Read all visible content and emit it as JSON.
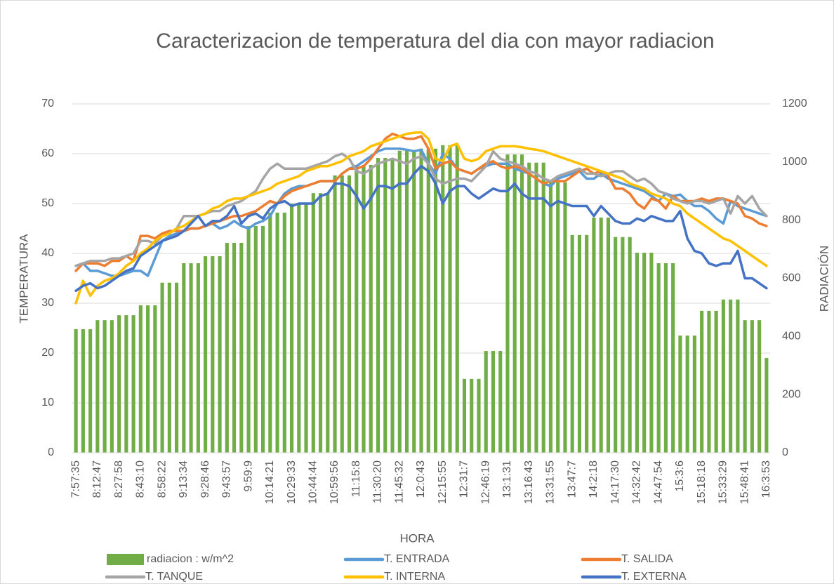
{
  "chart_data": {
    "type": "combo",
    "title": "Caracterizacion de temperatura del dia con mayor radiacion",
    "x_label": "HORA",
    "y_label": "TEMPERATURA",
    "y2_label": "RADIACIÓN",
    "categories": [
      "7:57:35",
      null,
      null,
      "8:12:47",
      null,
      null,
      "8:27:58",
      null,
      null,
      "8:43:10",
      null,
      null,
      "8:58:22",
      null,
      null,
      "9:13:34",
      null,
      null,
      "9:28:46",
      null,
      null,
      "9:43:57",
      null,
      null,
      "9:59:9",
      null,
      null,
      "10:14:21",
      null,
      null,
      "10:29:33",
      null,
      null,
      "10:44:44",
      null,
      null,
      "10:59:56",
      null,
      null,
      "11:15:8",
      null,
      null,
      "11:30:20",
      null,
      null,
      "11:45:32",
      null,
      null,
      "12:0:43",
      null,
      null,
      "12:15:55",
      null,
      null,
      "12:31:7",
      null,
      null,
      "12:46:19",
      null,
      null,
      "13:1:31",
      null,
      null,
      "13:16:43",
      null,
      null,
      "13:31:55",
      null,
      null,
      "13:47:7",
      null,
      null,
      "14:2:18",
      null,
      null,
      "14:17:30",
      null,
      null,
      "14:32:42",
      null,
      null,
      "14:47:54",
      null,
      null,
      "15:3:6",
      null,
      null,
      "15:18:18",
      null,
      null,
      "15:33:29",
      null,
      null,
      "15:48:41",
      null,
      null,
      "16:3:53"
    ],
    "ylim": [
      0,
      70
    ],
    "yticks": [
      0,
      10,
      20,
      30,
      40,
      50,
      60,
      70
    ],
    "y2lim": [
      0,
      1200
    ],
    "y2ticks": [
      0,
      200,
      400,
      600,
      800,
      1000,
      1200
    ],
    "grid": true,
    "legend": "bottom",
    "series": [
      {
        "name": "radiacion : w/m^2",
        "type": "bar",
        "axis": "y2",
        "color": "#70ad47",
        "values": [
          425,
          425,
          425,
          456,
          456,
          456,
          473,
          473,
          473,
          507,
          507,
          507,
          585,
          585,
          585,
          652,
          652,
          652,
          676,
          676,
          676,
          722,
          722,
          722,
          780,
          780,
          780,
          826,
          826,
          826,
          857,
          857,
          857,
          893,
          893,
          893,
          954,
          954,
          954,
          990,
          990,
          990,
          1014,
          1014,
          1014,
          1039,
          1039,
          1039,
          1046,
          1046,
          1046,
          1058,
          1058,
          1058,
          254,
          254,
          254,
          350,
          350,
          350,
          1026,
          1026,
          1026,
          998,
          998,
          998,
          930,
          930,
          930,
          749,
          749,
          749,
          809,
          809,
          809,
          742,
          742,
          742,
          688,
          688,
          688,
          652,
          652,
          652,
          403,
          403,
          403,
          488,
          488,
          488,
          527,
          527,
          527,
          456,
          456,
          456,
          326
        ]
      },
      {
        "name": "T. ENTRADA",
        "type": "line",
        "color": "#5b9bd5",
        "values": [
          37.5,
          38,
          36.5,
          36.5,
          36,
          35.5,
          35.5,
          36,
          36.5,
          36.5,
          35.5,
          39,
          42.5,
          43.5,
          44,
          44.5,
          45,
          45,
          45.5,
          46,
          45,
          45.5,
          46.5,
          45.5,
          45,
          46,
          46.5,
          47.5,
          50,
          52,
          53,
          53.5,
          53.5,
          54,
          54.5,
          54.5,
          54.5,
          56,
          57,
          57.5,
          58.5,
          59.5,
          60.5,
          61,
          61,
          61,
          60.8,
          60.5,
          60.8,
          58,
          56,
          60,
          59,
          57,
          56.5,
          56,
          57,
          57.5,
          58,
          58,
          58,
          57,
          56.5,
          56,
          55,
          54,
          53.5,
          55,
          55.5,
          56,
          56.5,
          55,
          55,
          56,
          55,
          54.5,
          54,
          53.5,
          53,
          52.5,
          51.5,
          50.5,
          52,
          51.5,
          51.8,
          50.5,
          49.5,
          49.5,
          48.5,
          47,
          46,
          50.5,
          49.5,
          49,
          48.5,
          48,
          47.5
        ]
      },
      {
        "name": "T. SALIDA",
        "type": "line",
        "color": "#ed7d31",
        "values": [
          36.5,
          38,
          38,
          38,
          37.5,
          38.5,
          38.5,
          39.5,
          38.5,
          43.5,
          43.5,
          43,
          44,
          44.5,
          44.5,
          44.5,
          45,
          45,
          45.5,
          46,
          46.5,
          47,
          47.5,
          47.5,
          48,
          48.5,
          49.5,
          50.5,
          50,
          51.5,
          52.5,
          53,
          53.5,
          54,
          54.5,
          54.5,
          54.5,
          56,
          57,
          57,
          57.5,
          59,
          61,
          63,
          64,
          63.5,
          63,
          63,
          63.5,
          61,
          57,
          58,
          58.5,
          57,
          56.5,
          56,
          57,
          58,
          58.5,
          57.5,
          57,
          57.5,
          57,
          56,
          55,
          54,
          54.5,
          54.5,
          54.5,
          55.5,
          56.5,
          57,
          56,
          56.5,
          55.5,
          53,
          53,
          52,
          50,
          49,
          51,
          50.5,
          49,
          51.5,
          50.5,
          50.5,
          50.5,
          51,
          50.5,
          51,
          51,
          50.5,
          50,
          47.5,
          47,
          46,
          45.5
        ]
      },
      {
        "name": "T. TANQUE",
        "type": "line",
        "color": "#a5a5a5",
        "values": [
          37.5,
          38,
          38.5,
          38.5,
          38.5,
          39,
          39,
          39.5,
          40,
          42.5,
          42.5,
          42,
          43.5,
          44,
          45,
          47.5,
          47.5,
          47.5,
          48,
          48.5,
          48.5,
          49.5,
          50,
          50.5,
          51.5,
          52.5,
          55,
          57,
          58,
          57,
          57,
          57,
          57,
          57.5,
          58,
          58.5,
          59.5,
          60,
          59,
          56.5,
          56,
          57,
          58,
          58.5,
          59,
          58.5,
          58,
          59,
          59.5,
          58,
          55,
          54,
          54.5,
          55,
          55,
          54.5,
          56,
          57.5,
          60.5,
          59,
          58.5,
          58,
          57.5,
          56.5,
          56,
          55,
          54.5,
          55.5,
          56,
          56.5,
          57,
          56,
          56,
          55.5,
          56,
          56.5,
          56.5,
          55.5,
          54.5,
          55,
          54,
          52.5,
          52,
          51,
          50.5,
          50,
          50.5,
          50.5,
          50,
          50.5,
          51,
          48,
          51.5,
          50,
          51.5,
          49,
          47.5
        ]
      },
      {
        "name": "T. INTERNA",
        "type": "line",
        "color": "#ffc000",
        "values": [
          30,
          34.5,
          31.5,
          33.5,
          34.5,
          35,
          36,
          37.5,
          38.5,
          40,
          41,
          42.5,
          43.5,
          44,
          45,
          45.5,
          46.5,
          47.5,
          48,
          49,
          49.5,
          50.5,
          51,
          51,
          51.5,
          52,
          52.5,
          53,
          54,
          54.5,
          55,
          55.5,
          56.5,
          57,
          57.5,
          57.5,
          58,
          58.5,
          59.5,
          60,
          60.5,
          61.5,
          62,
          62.5,
          63,
          63.5,
          64,
          64.2,
          64.3,
          63,
          59,
          58.5,
          61.5,
          62,
          59,
          58.5,
          59,
          60.5,
          61,
          61.5,
          61.5,
          61.5,
          61.3,
          61,
          60.8,
          60.5,
          60,
          59.5,
          59,
          58.5,
          58,
          57.5,
          57,
          56.5,
          56,
          55.5,
          55,
          54,
          53.5,
          53,
          52,
          51.5,
          51,
          50,
          49.5,
          48,
          47,
          46,
          45,
          44,
          43,
          42.5,
          41.5,
          40.5,
          39.5,
          38.5,
          37.5
        ]
      },
      {
        "name": "T. EXTERNA",
        "type": "line",
        "color": "#4472c4",
        "values": [
          32.5,
          33.5,
          34,
          33,
          33.5,
          34.5,
          35.5,
          36.5,
          37,
          39.5,
          40.5,
          41.5,
          42.5,
          43,
          43.5,
          44.5,
          46,
          47.5,
          45.5,
          46.5,
          46.5,
          47.5,
          49.5,
          46,
          47.5,
          48,
          47,
          49,
          50,
          50.5,
          49.5,
          50,
          50,
          50,
          51.5,
          52,
          54,
          54,
          53.5,
          51.5,
          49,
          51,
          53.5,
          53.5,
          53,
          54,
          54,
          56,
          57.5,
          56.5,
          54,
          50,
          52.5,
          53.5,
          53.5,
          52,
          51,
          52,
          53,
          52.5,
          52.5,
          54,
          52,
          51,
          51,
          51,
          49.5,
          50.5,
          50,
          49.5,
          49.5,
          49.5,
          47.5,
          49.5,
          48,
          46.5,
          46,
          46,
          47,
          46.5,
          47.5,
          47,
          46.5,
          46.5,
          48.5,
          43,
          40.5,
          40,
          38,
          37.5,
          38,
          38,
          40.5,
          35,
          35,
          34,
          33
        ]
      }
    ]
  }
}
